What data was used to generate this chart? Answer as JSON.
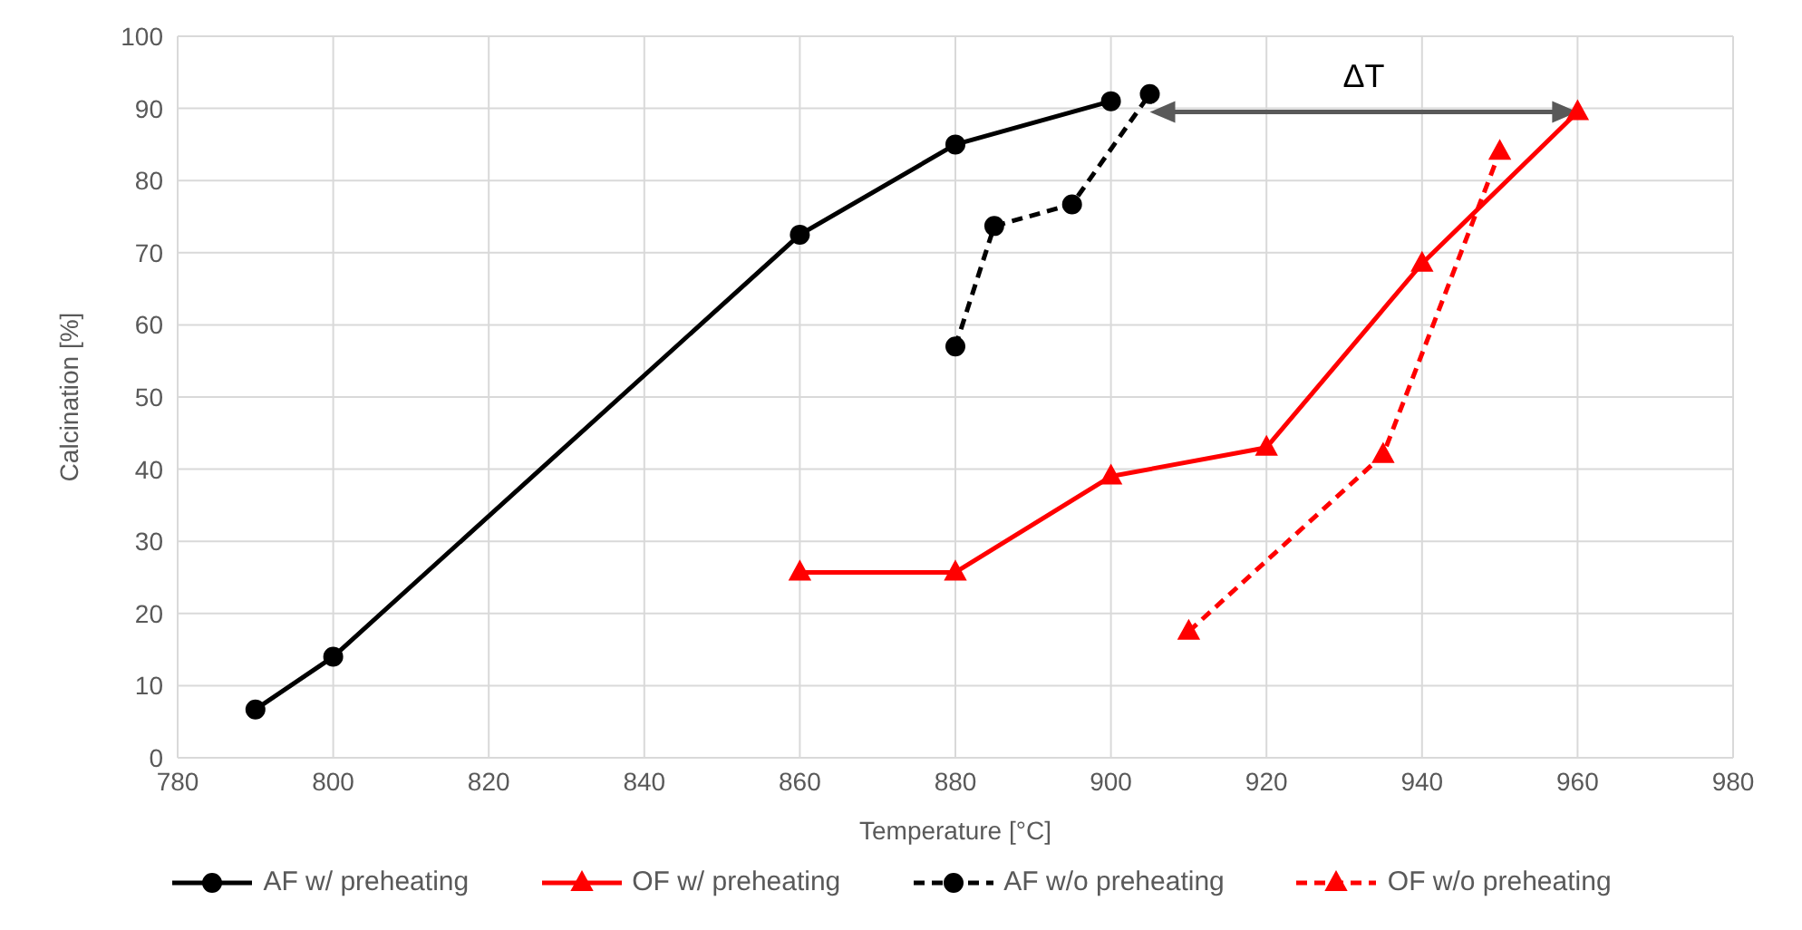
{
  "chart_data": {
    "type": "line",
    "xlabel": "Temperature [°C]",
    "ylabel": "Calcination [%]",
    "xlim": [
      780,
      980
    ],
    "xticks": [
      780,
      800,
      820,
      840,
      860,
      880,
      900,
      920,
      940,
      960,
      980
    ],
    "ylim": [
      0,
      100
    ],
    "yticks": [
      0,
      10,
      20,
      30,
      40,
      50,
      60,
      70,
      80,
      90,
      100
    ],
    "grid": true,
    "legend": "bottom",
    "series": [
      {
        "name": "AF w/ preheating",
        "color": "#000000",
        "marker": "circle",
        "line_style": "solid",
        "x": [
          790,
          800,
          860,
          880,
          900
        ],
        "values": [
          6.7,
          14,
          72.5,
          85,
          91
        ]
      },
      {
        "name": "OF w/ preheating",
        "color": "#ff0000",
        "marker": "triangle",
        "line_style": "solid",
        "x": [
          860,
          880,
          900,
          920,
          940,
          960
        ],
        "values": [
          25.7,
          25.7,
          39,
          43,
          68.5,
          89.5
        ]
      },
      {
        "name": "AF w/o preheating",
        "color": "#000000",
        "marker": "circle",
        "line_style": "dashed",
        "x": [
          880,
          885,
          895,
          905
        ],
        "values": [
          57,
          73.7,
          76.7,
          92
        ]
      },
      {
        "name": "OF w/o preheating",
        "color": "#ff0000",
        "marker": "triangle",
        "line_style": "dashed",
        "x": [
          910,
          935,
          950
        ],
        "values": [
          17.5,
          42,
          84
        ]
      }
    ],
    "annotations": [
      "ΔT"
    ]
  }
}
